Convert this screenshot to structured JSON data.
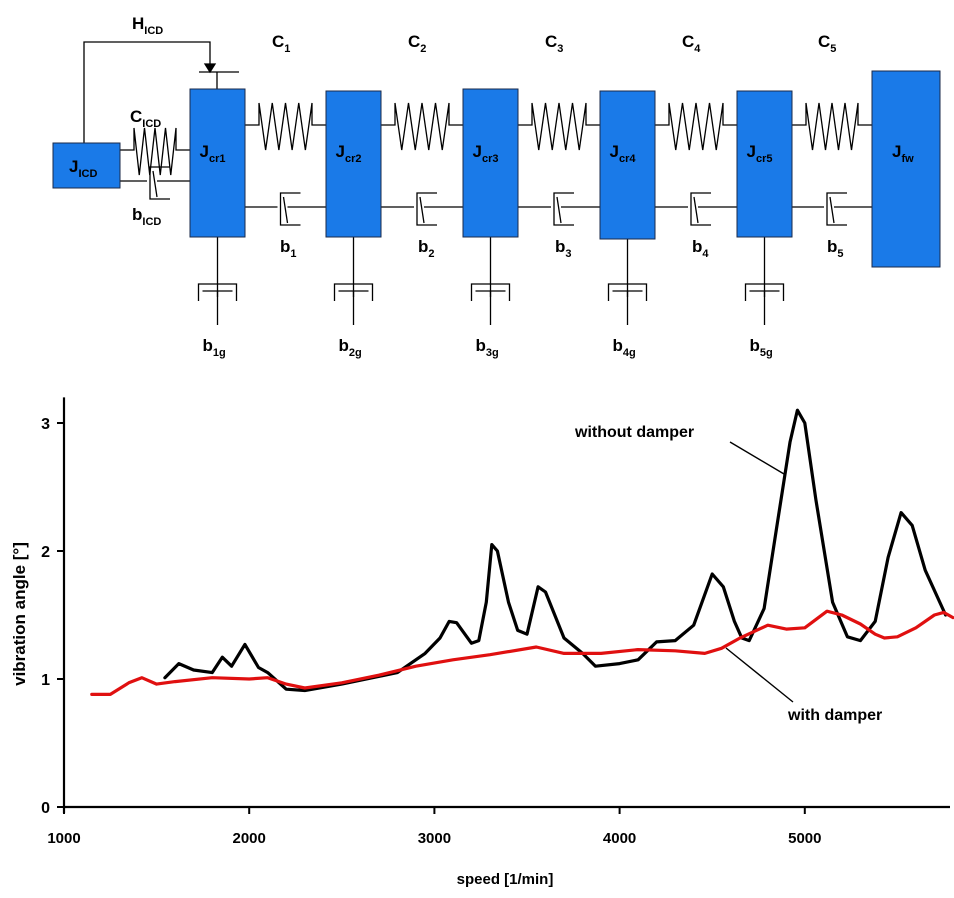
{
  "diagram": {
    "colors": {
      "mass": "#1a7ae8",
      "line": "#000000"
    },
    "feedback_label": {
      "main": "H",
      "sub": "ICD"
    },
    "icd_mass": {
      "main": "J",
      "sub": "ICD"
    },
    "icd_spring": {
      "main": "C",
      "sub": "ICD"
    },
    "icd_damper": {
      "main": "b",
      "sub": "ICD"
    },
    "masses": [
      {
        "main": "J",
        "sub": "cr1"
      },
      {
        "main": "J",
        "sub": "cr2"
      },
      {
        "main": "J",
        "sub": "cr3"
      },
      {
        "main": "J",
        "sub": "cr4"
      },
      {
        "main": "J",
        "sub": "cr5"
      },
      {
        "main": "J",
        "sub": "fw"
      }
    ],
    "springs": [
      {
        "main": "C",
        "sub": "1"
      },
      {
        "main": "C",
        "sub": "2"
      },
      {
        "main": "C",
        "sub": "3"
      },
      {
        "main": "C",
        "sub": "4"
      },
      {
        "main": "C",
        "sub": "5"
      }
    ],
    "dampers": [
      {
        "main": "b",
        "sub": "1"
      },
      {
        "main": "b",
        "sub": "2"
      },
      {
        "main": "b",
        "sub": "3"
      },
      {
        "main": "b",
        "sub": "4"
      },
      {
        "main": "b",
        "sub": "5"
      }
    ],
    "ground_dampers": [
      {
        "main": "b",
        "sub": "1g"
      },
      {
        "main": "b",
        "sub": "2g"
      },
      {
        "main": "b",
        "sub": "3g"
      },
      {
        "main": "b",
        "sub": "4g"
      },
      {
        "main": "b",
        "sub": "5g"
      }
    ]
  },
  "chart_data": {
    "type": "line",
    "title": "",
    "xlabel": "speed [1/min]",
    "ylabel": "vibration angle [°]",
    "xlim": [
      1000,
      5800
    ],
    "ylim": [
      0,
      3.2
    ],
    "xticks": [
      1000,
      2000,
      3000,
      4000,
      5000
    ],
    "yticks": [
      0,
      1,
      2,
      3
    ],
    "grid": false,
    "series": [
      {
        "name": "without damper",
        "color": "#000000",
        "x": [
          1545,
          1620,
          1700,
          1800,
          1855,
          1905,
          1977,
          2050,
          2100,
          2200,
          2300,
          2500,
          2800,
          2950,
          3030,
          3080,
          3120,
          3200,
          3240,
          3280,
          3310,
          3340,
          3400,
          3450,
          3500,
          3560,
          3600,
          3700,
          3800,
          3870,
          4000,
          4100,
          4150,
          4200,
          4300,
          4400,
          4500,
          4560,
          4620,
          4660,
          4700,
          4780,
          4850,
          4920,
          4960,
          5000,
          5060,
          5150,
          5230,
          5300,
          5380,
          5450,
          5520,
          5580,
          5650,
          5760
        ],
        "y": [
          1.01,
          1.12,
          1.07,
          1.05,
          1.17,
          1.1,
          1.27,
          1.09,
          1.05,
          0.92,
          0.91,
          0.96,
          1.05,
          1.2,
          1.32,
          1.45,
          1.44,
          1.28,
          1.3,
          1.6,
          2.05,
          2.0,
          1.6,
          1.38,
          1.35,
          1.72,
          1.68,
          1.32,
          1.2,
          1.1,
          1.12,
          1.15,
          1.22,
          1.29,
          1.3,
          1.42,
          1.82,
          1.72,
          1.45,
          1.32,
          1.3,
          1.55,
          2.2,
          2.85,
          3.1,
          3.0,
          2.4,
          1.6,
          1.33,
          1.3,
          1.45,
          1.95,
          2.3,
          2.2,
          1.85,
          1.5
        ]
      },
      {
        "name": "with damper",
        "color": "#e01010",
        "x": [
          1150,
          1250,
          1350,
          1420,
          1500,
          1600,
          1800,
          2000,
          2100,
          2200,
          2300,
          2500,
          2700,
          2900,
          3100,
          3300,
          3550,
          3700,
          3900,
          4100,
          4300,
          4460,
          4550,
          4650,
          4800,
          4900,
          5000,
          5120,
          5200,
          5300,
          5380,
          5430,
          5500,
          5600,
          5700,
          5750,
          5800
        ],
        "y": [
          0.88,
          0.88,
          0.97,
          1.01,
          0.96,
          0.98,
          1.01,
          1.0,
          1.01,
          0.96,
          0.93,
          0.97,
          1.03,
          1.1,
          1.15,
          1.19,
          1.25,
          1.2,
          1.2,
          1.23,
          1.22,
          1.2,
          1.24,
          1.32,
          1.42,
          1.39,
          1.4,
          1.53,
          1.5,
          1.43,
          1.35,
          1.32,
          1.33,
          1.4,
          1.5,
          1.52,
          1.48
        ]
      }
    ],
    "annotations": [
      {
        "text": "without damper",
        "points_to": "without damper"
      },
      {
        "text": "with damper",
        "points_to": "with damper"
      }
    ]
  }
}
